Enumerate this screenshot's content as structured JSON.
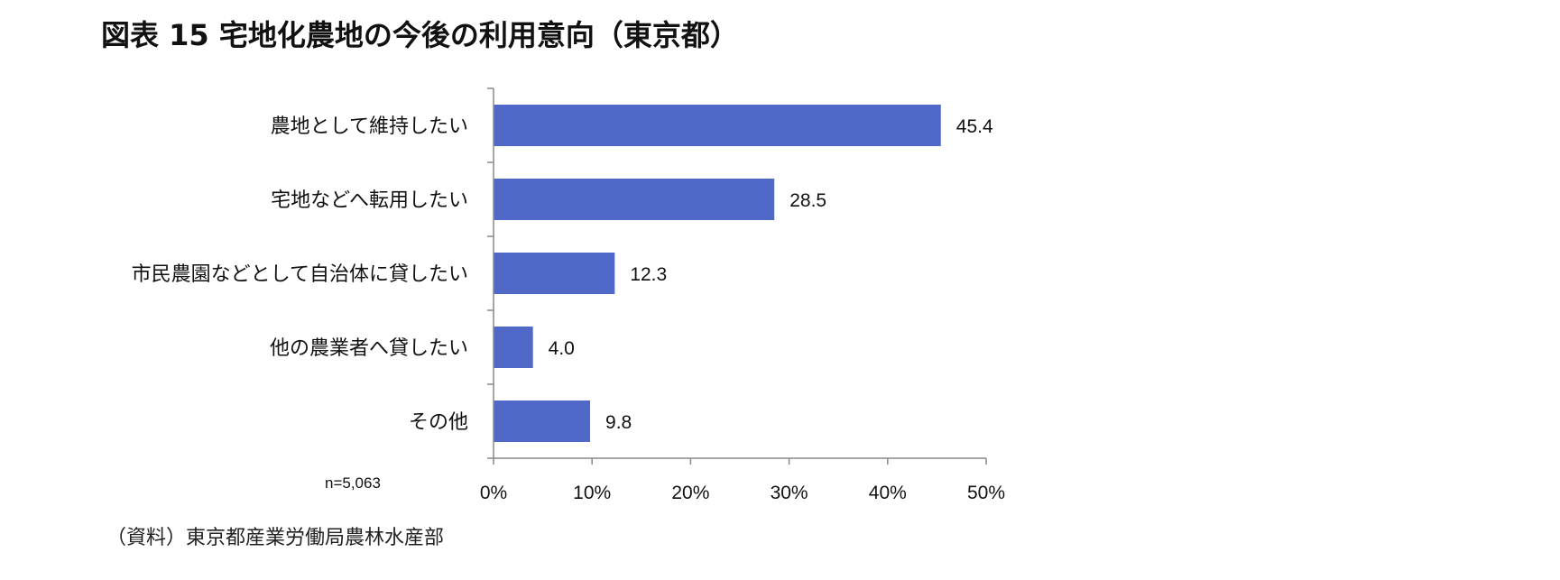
{
  "figure": {
    "title": "図表 15  宅地化農地の今後の利用意向（東京都）",
    "sample_size": "n=5,063",
    "source": "（資料）東京都産業労働局農林水産部"
  },
  "chart_data": {
    "type": "bar",
    "orientation": "horizontal",
    "categories": [
      "農地として維持したい",
      "宅地などへ転用したい",
      "市民農園などとして自治体に貸したい",
      "他の農業者へ貸したい",
      "その他"
    ],
    "values": [
      45.4,
      28.5,
      12.3,
      4.0,
      9.8
    ],
    "value_labels": [
      "45.4",
      "28.5",
      "12.3",
      "4.0",
      "9.8"
    ],
    "xlim": [
      0,
      50
    ],
    "xticks": [
      0,
      10,
      20,
      30,
      40,
      50
    ],
    "xtick_labels": [
      "0%",
      "10%",
      "20%",
      "30%",
      "40%",
      "50%"
    ],
    "bar_color": "#5069C8",
    "axis_color": "#888888",
    "grid": false,
    "legend": "none"
  }
}
